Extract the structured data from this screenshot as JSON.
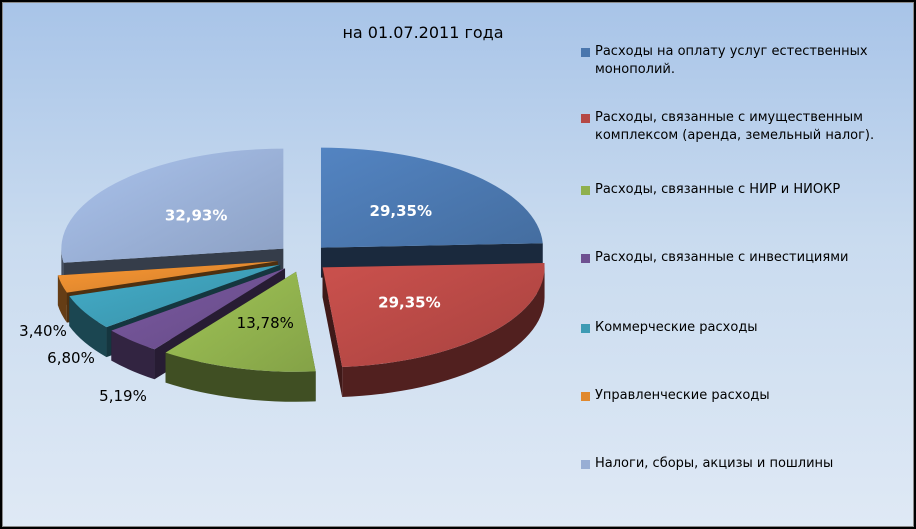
{
  "chart_data": {
    "type": "pie",
    "title": "на 01.07.2011 года",
    "slices": [
      {
        "name": "Расходы на оплату услуг естественных монополий.",
        "value": 29.35,
        "label": "29,35%",
        "color": "#4a76ad"
      },
      {
        "name": "Расходы, связанные с имущественным комплексом (аренда, земельный налог).",
        "value": 29.35,
        "label": "29,35%",
        "color": "#b54845"
      },
      {
        "name": "Расходы, связанные с НИР и НИОКР",
        "value": 13.78,
        "label": "13,78%",
        "color": "#8fb04d"
      },
      {
        "name": "Расходы, связанные с инвестициями",
        "value": 5.19,
        "label": "5,19%",
        "color": "#6e5091"
      },
      {
        "name": "Коммерческие расходы",
        "value": 6.8,
        "label": "6,80%",
        "color": "#3d9bb4"
      },
      {
        "name": "Управленческие расходы",
        "value": 3.4,
        "label": "3,40%",
        "color": "#e0882e"
      },
      {
        "name": "Налоги, сборы, акцизы и пошлины",
        "value": 32.93,
        "label": "32,93%",
        "color": "#98aed4"
      }
    ],
    "legend_position": "right"
  }
}
